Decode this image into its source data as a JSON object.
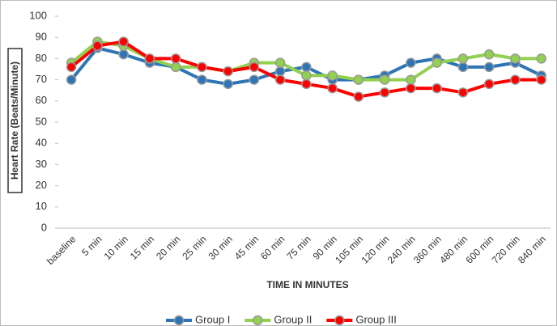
{
  "chart_data": {
    "type": "line",
    "y_label": "Heart Rate (Beats/Minute)",
    "x_label": "TIME IN MINUTES",
    "categories": [
      "baseline",
      "5 min",
      "10 min",
      "15 min",
      "20 min",
      "25 min",
      "30 min",
      "45 min",
      "60 min",
      "75 min",
      "90 min",
      "105 min",
      "120 min",
      "240 min",
      "360 min",
      "480 min",
      "600 min",
      "720 min",
      "840 min"
    ],
    "series": [
      {
        "name": "Group I",
        "color": "#2e75b6",
        "values": [
          70,
          85,
          82,
          78,
          76,
          70,
          68,
          70,
          74,
          76,
          70,
          70,
          72,
          78,
          80,
          76,
          76,
          78,
          72
        ]
      },
      {
        "name": "Group II",
        "color": "#92d050",
        "values": [
          78,
          88,
          86,
          80,
          76,
          76,
          74,
          78,
          78,
          72,
          72,
          70,
          70,
          70,
          78,
          80,
          82,
          80,
          80
        ]
      },
      {
        "name": "Group III",
        "color": "#ff0000",
        "values": [
          76,
          86,
          88,
          80,
          80,
          76,
          74,
          76,
          70,
          68,
          66,
          62,
          64,
          66,
          66,
          64,
          68,
          70,
          70
        ]
      }
    ],
    "ylim": [
      0,
      100
    ],
    "yticks": [
      0,
      10,
      20,
      30,
      40,
      50,
      60,
      70,
      80,
      90,
      100
    ],
    "legend": "bottom"
  }
}
